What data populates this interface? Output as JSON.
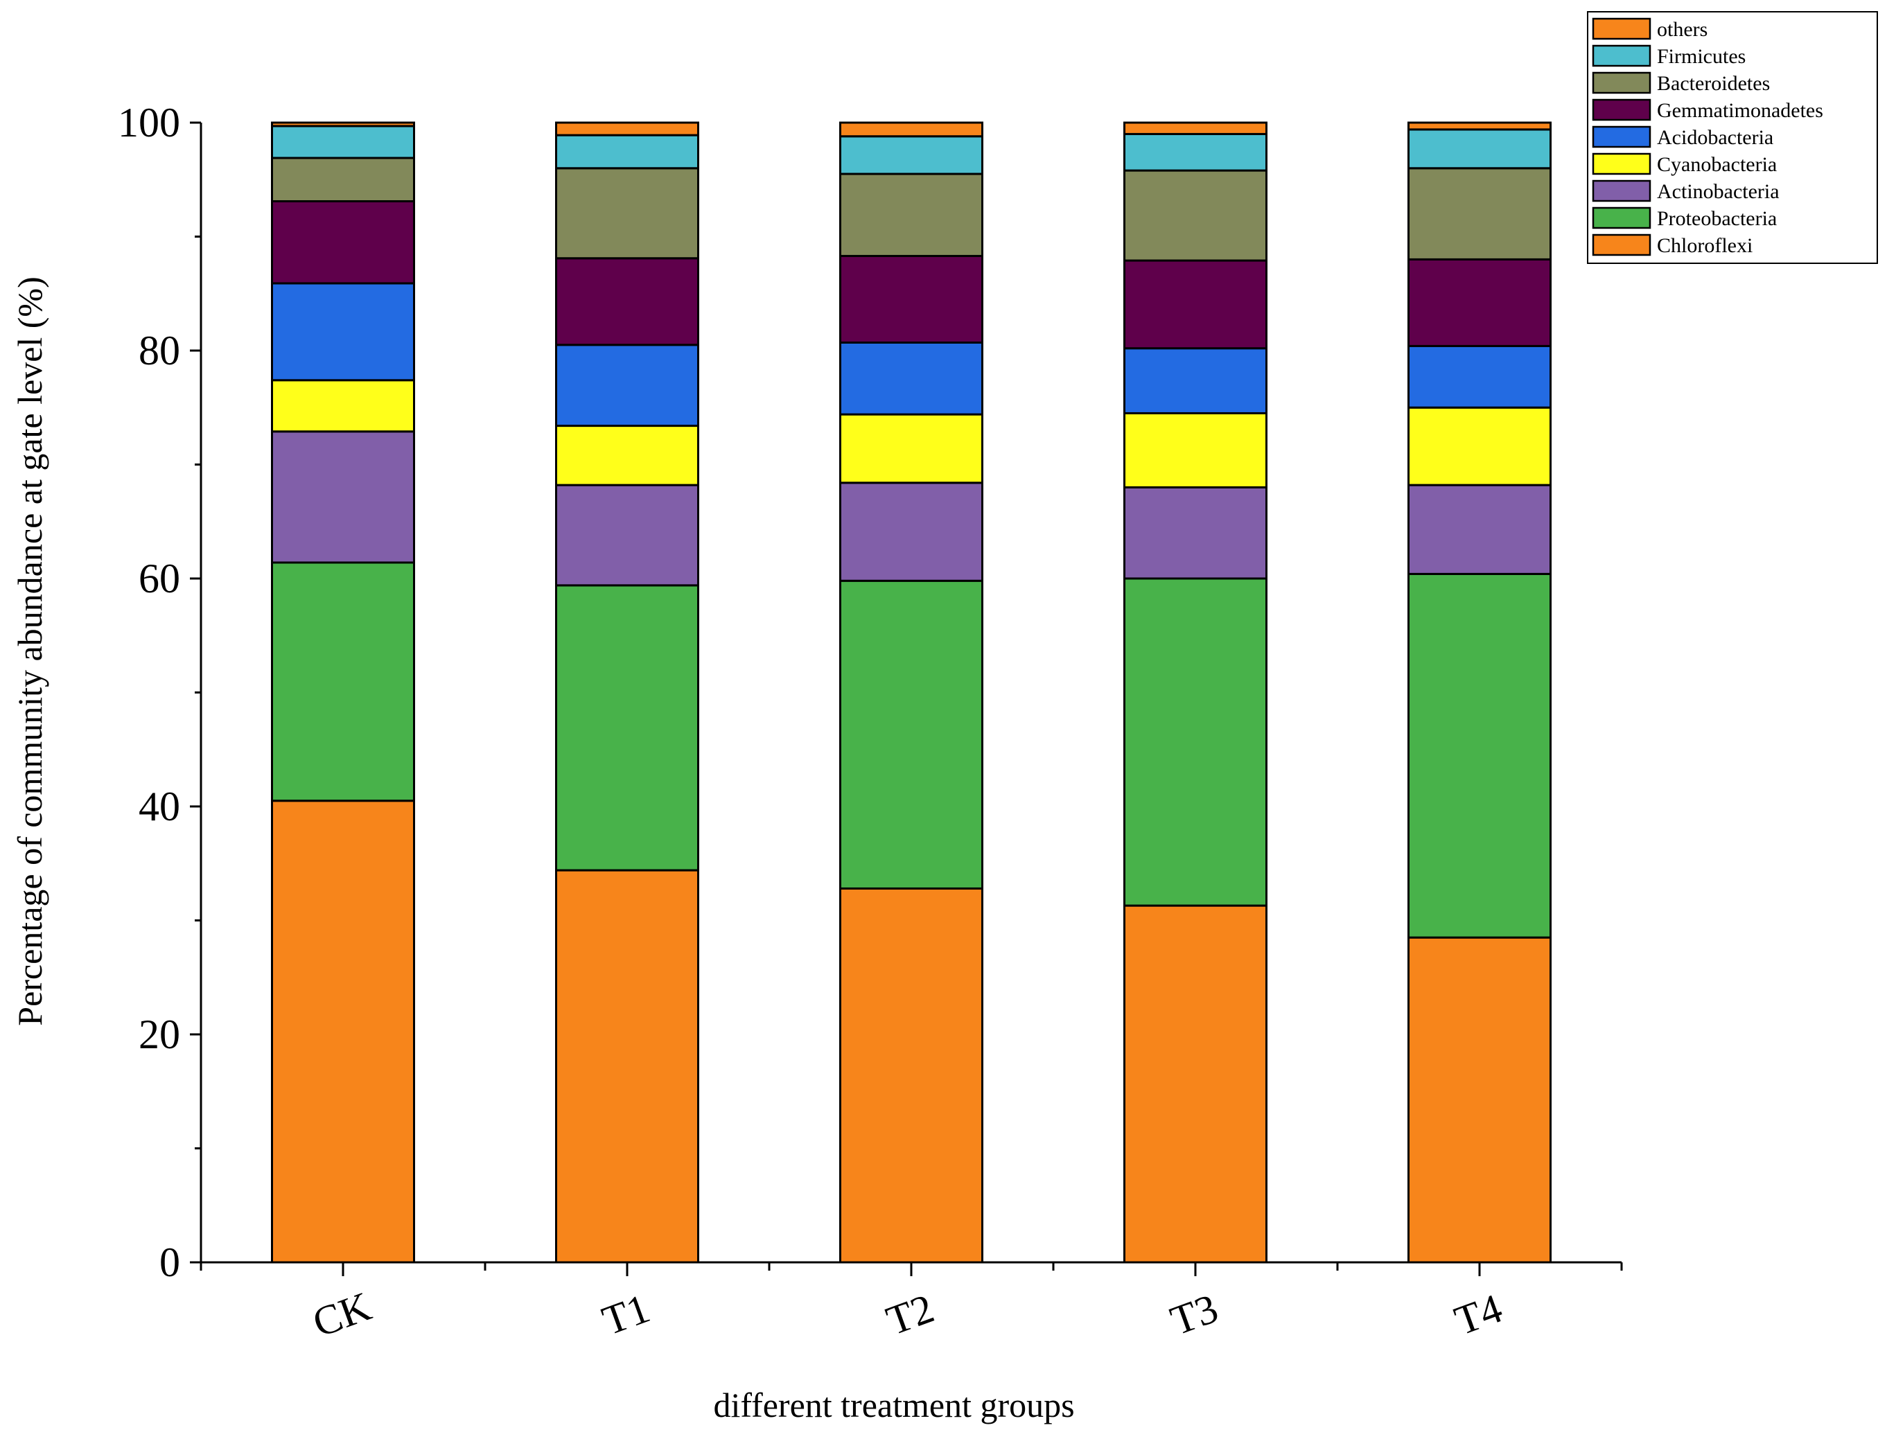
{
  "chart_data": {
    "type": "bar",
    "stacked": true,
    "title": "",
    "xlabel": "different treatment groups",
    "ylabel": "Percentage of community abundance at gate level (%)",
    "ylim": [
      0,
      100
    ],
    "yticks": [
      0,
      20,
      40,
      60,
      80,
      100
    ],
    "categories": [
      "CK",
      "T1",
      "T2",
      "T3",
      "T4"
    ],
    "series": [
      {
        "name": "Chloroflexi",
        "color": "#F7851B",
        "values": [
          40.5,
          34.4,
          32.8,
          31.3,
          28.5
        ]
      },
      {
        "name": "Proteobacteria",
        "color": "#48B24A",
        "values": [
          20.9,
          25.0,
          27.0,
          28.7,
          31.9
        ]
      },
      {
        "name": "Actinobacteria",
        "color": "#815FA9",
        "values": [
          11.5,
          8.8,
          8.6,
          8.0,
          7.8
        ]
      },
      {
        "name": "Cyanobacteria",
        "color": "#FFFF1A",
        "values": [
          4.5,
          5.2,
          6.0,
          6.5,
          6.8
        ]
      },
      {
        "name": "Acidobacteria",
        "color": "#236BE2",
        "values": [
          8.5,
          7.1,
          6.3,
          5.7,
          5.4
        ]
      },
      {
        "name": "Gemmatimonadetes",
        "color": "#5F004B",
        "values": [
          7.2,
          7.6,
          7.6,
          7.7,
          7.6
        ]
      },
      {
        "name": "Bacteroidetes",
        "color": "#82895A",
        "values": [
          3.8,
          7.9,
          7.2,
          7.9,
          8.0
        ]
      },
      {
        "name": "Firmicutes",
        "color": "#4DBECE",
        "values": [
          2.8,
          2.9,
          3.3,
          3.2,
          3.4
        ]
      },
      {
        "name": "others",
        "color": "#F7851B",
        "values": [
          0.3,
          1.1,
          1.2,
          1.0,
          0.6
        ]
      }
    ],
    "legend_position": "top-right",
    "legend_order": [
      "others",
      "Firmicutes",
      "Bacteroidetes",
      "Gemmatimonadetes",
      "Acidobacteria",
      "Cyanobacteria",
      "Actinobacteria",
      "Proteobacteria",
      "Chloroflexi"
    ]
  }
}
